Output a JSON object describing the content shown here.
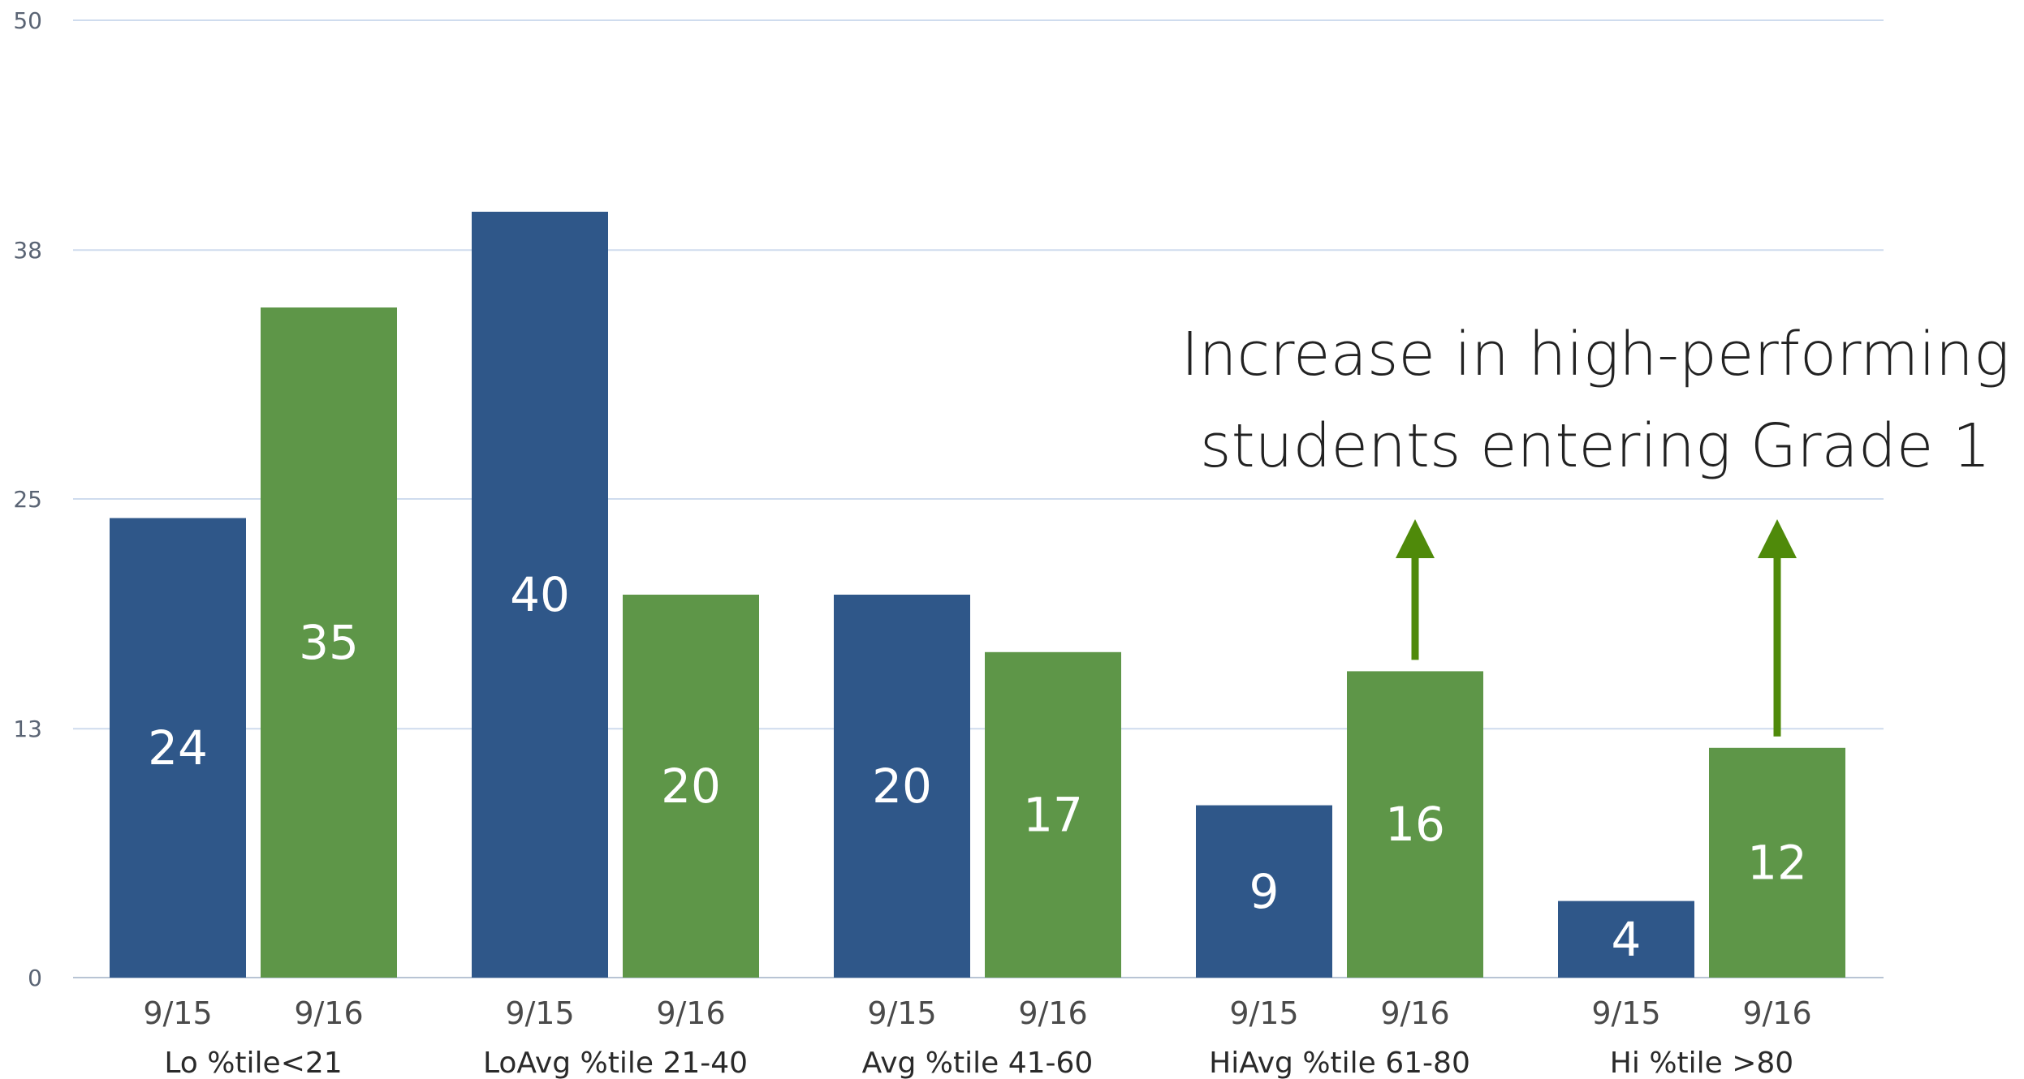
{
  "chart_data": {
    "type": "bar",
    "categories": [
      "Lo  %tile<21",
      "LoAvg  %tile 21-40",
      "Avg %tile 41-60",
      "HiAvg %tile 61-80",
      "Hi %tile >80"
    ],
    "series": [
      {
        "name": "9/15",
        "values": [
          24,
          40,
          20,
          9,
          4
        ]
      },
      {
        "name": "9/16",
        "values": [
          35,
          20,
          17,
          16,
          12
        ]
      }
    ],
    "xlabel": "",
    "ylabel": "",
    "ylim": [
      0,
      50
    ],
    "yticks": [
      0,
      13,
      25,
      38,
      50
    ],
    "grid": true,
    "colors": {
      "9/15": "#2f5789",
      "9/16": "#5e9648",
      "arrow": "#4f8a0a",
      "grid": "#cfdcee"
    },
    "annotation": {
      "lines": [
        "Increase in  high-performing",
        "students entering Grade 1"
      ]
    },
    "arrows_over_categories": [
      "HiAvg %tile 61-80",
      "Hi %tile >80"
    ]
  }
}
